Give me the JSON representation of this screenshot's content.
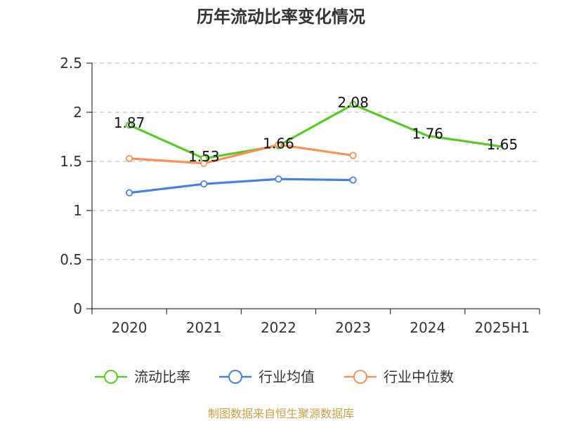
{
  "chart_data": {
    "type": "line",
    "title": "历年流动比率变化情况",
    "categories": [
      "2020",
      "2021",
      "2022",
      "2023",
      "2024",
      "2025H1"
    ],
    "ylim": [
      0,
      2.5
    ],
    "yticks": [
      "0",
      "0.5",
      "1",
      "1.5",
      "2",
      "2.5"
    ],
    "ytick_values": [
      0,
      0.5,
      1,
      1.5,
      2,
      2.5
    ],
    "grid": true,
    "legend_position": "bottom",
    "series": [
      {
        "name": "流动比率",
        "color": "#5cc72c",
        "values": [
          1.87,
          1.53,
          1.66,
          2.08,
          1.76,
          1.65
        ],
        "labels": [
          "1.87",
          "1.53",
          "1.66",
          "2.08",
          "1.76",
          "1.65"
        ],
        "markers": [
          true,
          true,
          true,
          true,
          false,
          false
        ]
      },
      {
        "name": "行业均值",
        "color": "#4a7fdc",
        "values": [
          1.18,
          1.27,
          1.32,
          1.31,
          null,
          null
        ],
        "markers": [
          true,
          true,
          true,
          true,
          false,
          false
        ]
      },
      {
        "name": "行业中位数",
        "color": "#f5915b",
        "values": [
          1.53,
          1.48,
          1.67,
          1.56,
          null,
          null
        ],
        "markers": [
          true,
          true,
          true,
          true,
          false,
          false
        ]
      }
    ]
  },
  "footer": {
    "source": "制图数据来自恒生聚源数据库"
  }
}
